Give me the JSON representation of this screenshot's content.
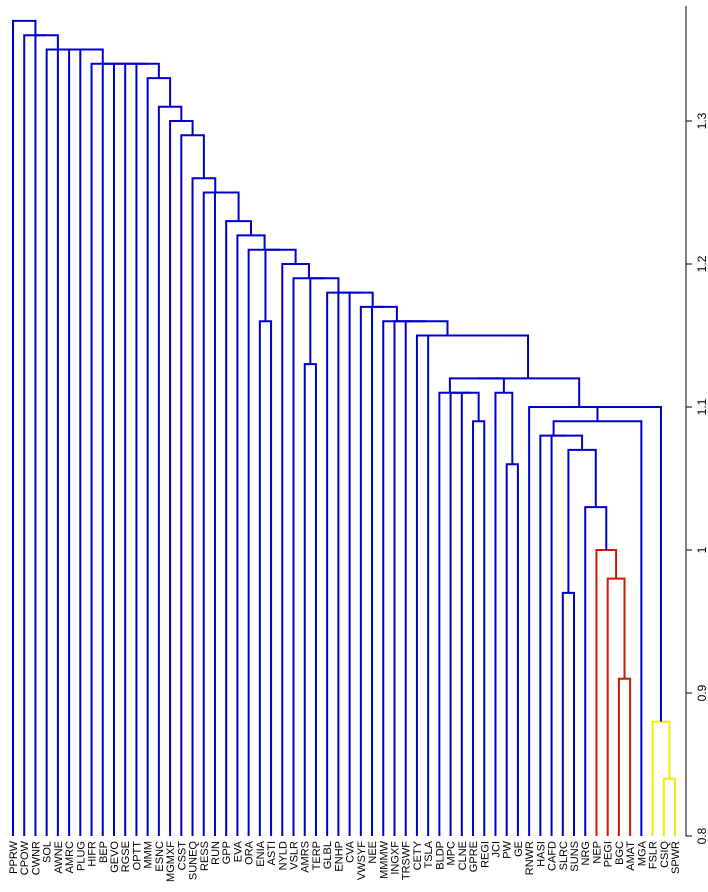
{
  "chart_data": {
    "type": "dendrogram",
    "title": "",
    "axis": {
      "ticks": [
        "0.8",
        "0.9",
        "1",
        "1.1",
        "1.2",
        "1.3"
      ],
      "tick_values": [
        0.8,
        0.9,
        1.0,
        1.1,
        1.2,
        1.3
      ],
      "range": [
        0.8,
        1.37
      ]
    },
    "colors": {
      "blue": "#0000cc",
      "red": "#cc1a00",
      "yellow": "#eeee00"
    },
    "leaves": [
      "PPRW",
      "CPOW",
      "CWNR",
      "SOL",
      "AWNE",
      "AMRC",
      "PLUG",
      "HIFR",
      "BEP",
      "GEVO",
      "RGSE",
      "OPTT",
      "MMM",
      "ESNC",
      "MGMXF",
      "CSST",
      "SUNEQ",
      "RESS",
      "RUN",
      "GPP",
      "EVA",
      "ORA",
      "ENIA",
      "ASTI",
      "NYLD",
      "VSLR",
      "AMRS",
      "TERP",
      "GLBL",
      "ENHP",
      "CVA",
      "VWSYF",
      "NEE",
      "MMMW",
      "INGXF",
      "TRSWF",
      "CETY",
      "TSLA",
      "BLDP",
      "MPC",
      "CLNE",
      "GPRE",
      "REGI",
      "JCI",
      "PW",
      "GE",
      "RNWR",
      "HASI",
      "CAFD",
      "SLRC",
      "SUNS",
      "NRG",
      "NEP",
      "PEGI",
      "BGC",
      "AMAT",
      "MGA",
      "FSLR",
      "CSIQ",
      "SPWR"
    ],
    "merges": [
      {
        "a": "L58",
        "b": "L59",
        "h": 0.84,
        "c": "yellow"
      },
      {
        "a": "L57",
        "b": "N0",
        "h": 0.88,
        "c": "yellow"
      },
      {
        "a": "L54",
        "b": "L55",
        "h": 0.91,
        "c": "red"
      },
      {
        "a": "L53",
        "b": "N2",
        "h": 0.98,
        "c": "red"
      },
      {
        "a": "L52",
        "b": "N3",
        "h": 1.0,
        "c": "red"
      },
      {
        "a": "L49",
        "b": "L50",
        "h": 0.97,
        "c": "blue"
      },
      {
        "a": "L51",
        "b": "N4",
        "h": 1.03,
        "c": "blue"
      },
      {
        "a": "N5",
        "b": "N6",
        "h": 1.07,
        "c": "blue"
      },
      {
        "a": "L48",
        "b": "N7",
        "h": 1.08,
        "c": "blue"
      },
      {
        "a": "L47",
        "b": "N8",
        "h": 1.08,
        "c": "blue"
      },
      {
        "a": "N9",
        "b": "L56",
        "h": 1.09,
        "c": "blue"
      },
      {
        "a": "N10",
        "b": "N1",
        "h": 1.1,
        "c": "blue"
      },
      {
        "a": "L46",
        "b": "N11",
        "h": 1.1,
        "c": "blue"
      },
      {
        "a": "L44",
        "b": "L45",
        "h": 1.06,
        "c": "blue"
      },
      {
        "a": "L43",
        "b": "N13",
        "h": 1.11,
        "c": "blue"
      },
      {
        "a": "L41",
        "b": "L42",
        "h": 1.09,
        "c": "blue"
      },
      {
        "a": "L40",
        "b": "N15",
        "h": 1.11,
        "c": "blue"
      },
      {
        "a": "L39",
        "b": "N16",
        "h": 1.11,
        "c": "blue"
      },
      {
        "a": "L38",
        "b": "N17",
        "h": 1.11,
        "c": "blue"
      },
      {
        "a": "N18",
        "b": "N14",
        "h": 1.12,
        "c": "blue"
      },
      {
        "a": "N19",
        "b": "N12",
        "h": 1.12,
        "c": "blue"
      },
      {
        "a": "L37",
        "b": "N20",
        "h": 1.15,
        "c": "blue"
      },
      {
        "a": "L36",
        "b": "N21",
        "h": 1.15,
        "c": "blue"
      },
      {
        "a": "L35",
        "b": "N22",
        "h": 1.16,
        "c": "blue"
      },
      {
        "a": "L34",
        "b": "N23",
        "h": 1.16,
        "c": "blue"
      },
      {
        "a": "L33",
        "b": "N24",
        "h": 1.16,
        "c": "blue"
      },
      {
        "a": "L32",
        "b": "N25",
        "h": 1.17,
        "c": "blue"
      },
      {
        "a": "L31",
        "b": "N26",
        "h": 1.17,
        "c": "blue"
      },
      {
        "a": "L30",
        "b": "N27",
        "h": 1.18,
        "c": "blue"
      },
      {
        "a": "L29",
        "b": "N28",
        "h": 1.18,
        "c": "blue"
      },
      {
        "a": "L28",
        "b": "N29",
        "h": 1.18,
        "c": "blue"
      },
      {
        "a": "L26",
        "b": "L27",
        "h": 1.13,
        "c": "blue"
      },
      {
        "a": "N31",
        "b": "N30",
        "h": 1.19,
        "c": "blue"
      },
      {
        "a": "L25",
        "b": "N32",
        "h": 1.19,
        "c": "blue"
      },
      {
        "a": "L24",
        "b": "N33",
        "h": 1.2,
        "c": "blue"
      },
      {
        "a": "L22",
        "b": "L23",
        "h": 1.16,
        "c": "blue"
      },
      {
        "a": "N35",
        "b": "N34",
        "h": 1.21,
        "c": "blue"
      },
      {
        "a": "L21",
        "b": "N36",
        "h": 1.21,
        "c": "blue"
      },
      {
        "a": "L20",
        "b": "N37",
        "h": 1.22,
        "c": "blue"
      },
      {
        "a": "L19",
        "b": "N38",
        "h": 1.23,
        "c": "blue"
      },
      {
        "a": "L18",
        "b": "N39",
        "h": 1.25,
        "c": "blue"
      },
      {
        "a": "L17",
        "b": "N40",
        "h": 1.25,
        "c": "blue"
      },
      {
        "a": "L16",
        "b": "N41",
        "h": 1.26,
        "c": "blue"
      },
      {
        "a": "L15",
        "b": "N42",
        "h": 1.29,
        "c": "blue"
      },
      {
        "a": "L14",
        "b": "N43",
        "h": 1.3,
        "c": "blue"
      },
      {
        "a": "L13",
        "b": "N44",
        "h": 1.31,
        "c": "blue"
      },
      {
        "a": "L12",
        "b": "N45",
        "h": 1.33,
        "c": "blue"
      },
      {
        "a": "L11",
        "b": "N46",
        "h": 1.34,
        "c": "blue"
      },
      {
        "a": "L10",
        "b": "N47",
        "h": 1.34,
        "c": "blue"
      },
      {
        "a": "L9",
        "b": "N48",
        "h": 1.34,
        "c": "blue"
      },
      {
        "a": "L8",
        "b": "N49",
        "h": 1.34,
        "c": "blue"
      },
      {
        "a": "L7",
        "b": "N50",
        "h": 1.34,
        "c": "blue"
      },
      {
        "a": "L6",
        "b": "N51",
        "h": 1.35,
        "c": "blue"
      },
      {
        "a": "L5",
        "b": "N52",
        "h": 1.35,
        "c": "blue"
      },
      {
        "a": "L4",
        "b": "N53",
        "h": 1.35,
        "c": "blue"
      },
      {
        "a": "L3",
        "b": "N54",
        "h": 1.35,
        "c": "blue"
      },
      {
        "a": "L2",
        "b": "N55",
        "h": 1.36,
        "c": "blue"
      },
      {
        "a": "L1",
        "b": "N56",
        "h": 1.36,
        "c": "blue"
      },
      {
        "a": "L0",
        "b": "N57",
        "h": 1.37,
        "c": "blue"
      }
    ]
  }
}
